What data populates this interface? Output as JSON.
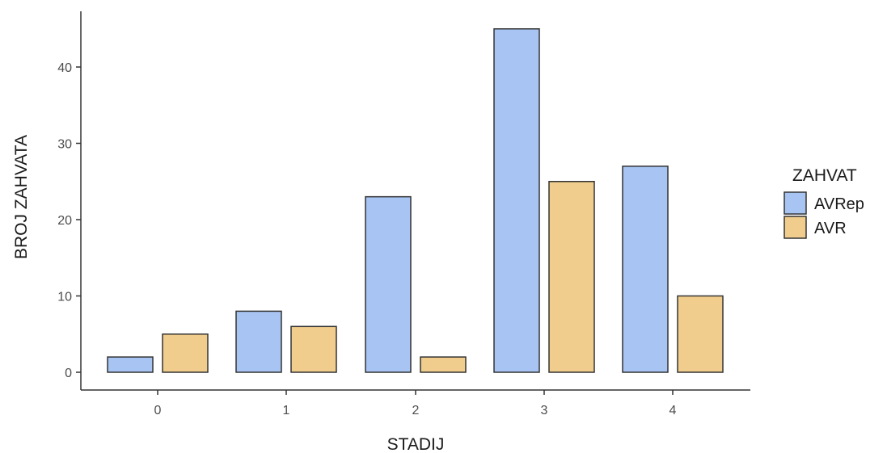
{
  "chart_data": {
    "type": "bar",
    "title": "",
    "xlabel": "STADIJ",
    "ylabel": "BROJ ZAHVATA",
    "categories": [
      "0",
      "1",
      "2",
      "3",
      "4"
    ],
    "yticks": [
      "0",
      "10",
      "20",
      "30",
      "40"
    ],
    "ylim": [
      0,
      46
    ],
    "grid": false,
    "legend_title": "ZAHVAT",
    "legend_position": "right",
    "series": [
      {
        "name": "AVRep",
        "color": "#a7c4f2",
        "values": [
          2,
          8,
          23,
          45,
          27
        ]
      },
      {
        "name": "AVR",
        "color": "#f0cd8c",
        "values": [
          5,
          6,
          2,
          25,
          10
        ]
      }
    ]
  }
}
